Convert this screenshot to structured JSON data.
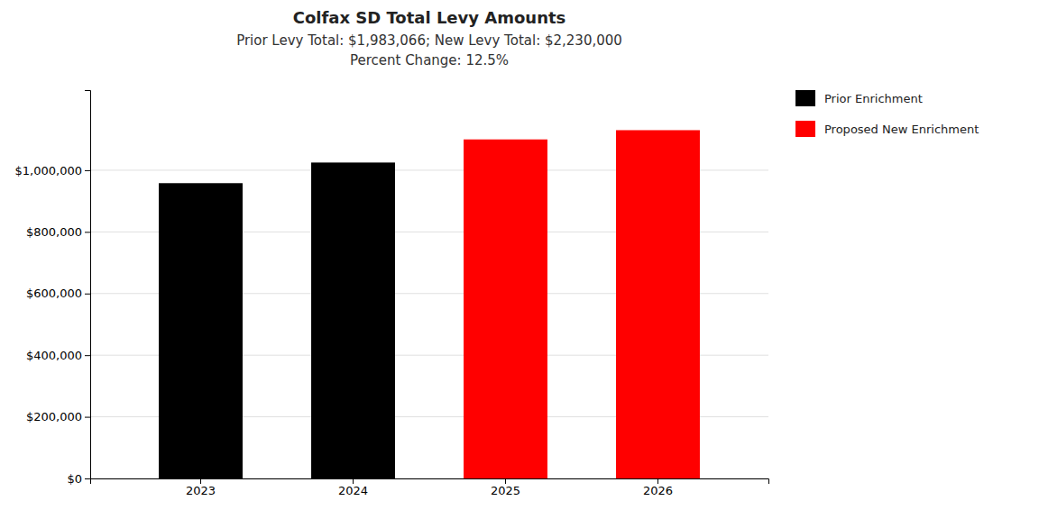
{
  "chart_data": {
    "type": "bar",
    "title": "Colfax SD Total Levy Amounts",
    "subtitle": [
      "Prior Levy Total:  $1,983,066; New Levy Total: $2,230,000",
      "Percent Change: 12.5%"
    ],
    "categories": [
      "2023",
      "2024",
      "2025",
      "2026"
    ],
    "series": [
      {
        "name": "Prior Enrichment",
        "color": "#000000",
        "values": [
          958066,
          1025000,
          null,
          null
        ]
      },
      {
        "name": "Proposed New Enrichment",
        "color": "#ff0000",
        "values": [
          null,
          null,
          1100000,
          1130000
        ]
      }
    ],
    "ylim": [
      0,
      1260000
    ],
    "yticks": [
      {
        "value": 0,
        "label": "$0"
      },
      {
        "value": 200000,
        "label": "$200,000"
      },
      {
        "value": 400000,
        "label": "$400,000"
      },
      {
        "value": 600000,
        "label": "$600,000"
      },
      {
        "value": 800000,
        "label": "$800,000"
      },
      {
        "value": 1000000,
        "label": "$1,000,000"
      }
    ],
    "grid": true,
    "legend": "right"
  }
}
